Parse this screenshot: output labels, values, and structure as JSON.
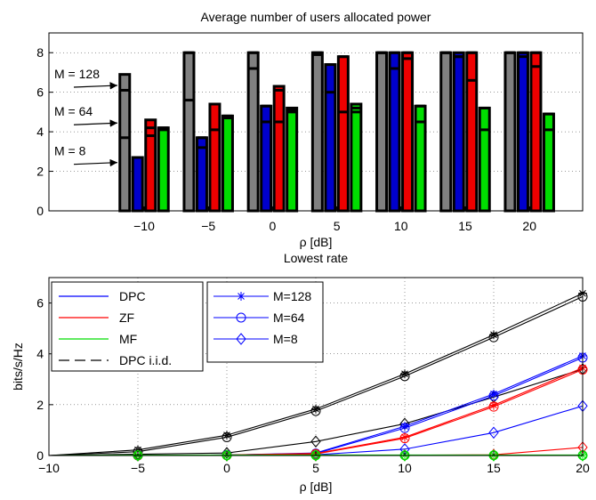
{
  "chart_data": [
    {
      "type": "bar",
      "title": "Average number of users allocated power",
      "xlabel": "ρ [dB]",
      "ylabel": "",
      "ylim": [
        0,
        9
      ],
      "yticks": [
        "0",
        "2",
        "4",
        "6",
        "8"
      ],
      "categories": [
        "−10",
        "−5",
        "0",
        "5",
        "10",
        "15",
        "20"
      ],
      "colors": {
        "DPC": "#808080",
        "DPC_alt": "#0000cc",
        "ZF": "#ee0000",
        "MF": "#00dd00"
      },
      "series": [
        {
          "key": "s0",
          "color": "#808080",
          "values": [
            [
              6.9,
              6.1,
              3.7
            ],
            [
              8.0,
              8.0,
              5.6
            ],
            [
              8.0,
              8.0,
              7.2
            ],
            [
              8.0,
              8.0,
              7.9
            ],
            [
              8.0,
              8.0,
              8.0
            ],
            [
              8.0,
              8.0,
              8.0
            ],
            [
              8.0,
              8.0,
              8.0
            ]
          ]
        },
        {
          "key": "s1",
          "color": "#0000cc",
          "values": [
            [
              2.7,
              2.7,
              2.7
            ],
            [
              3.7,
              3.7,
              3.2
            ],
            [
              5.3,
              5.3,
              4.5
            ],
            [
              7.4,
              7.4,
              6.0
            ],
            [
              8.0,
              8.0,
              7.2
            ],
            [
              8.0,
              7.8,
              7.8
            ],
            [
              8.0,
              8.0,
              7.8
            ]
          ]
        },
        {
          "key": "s2",
          "color": "#ee0000",
          "values": [
            [
              4.6,
              4.2,
              3.8
            ],
            [
              5.4,
              5.4,
              4.1
            ],
            [
              6.3,
              6.1,
              4.5
            ],
            [
              7.8,
              7.8,
              5.0
            ],
            [
              8.0,
              8.0,
              7.7
            ],
            [
              8.0,
              8.0,
              6.6
            ],
            [
              8.0,
              8.0,
              7.3
            ]
          ]
        },
        {
          "key": "s3",
          "color": "#00dd00",
          "values": [
            [
              4.2,
              4.2,
              4.1
            ],
            [
              4.8,
              4.8,
              4.7
            ],
            [
              5.2,
              5.1,
              5.0
            ],
            [
              5.4,
              5.2,
              5.0
            ],
            [
              5.3,
              5.3,
              4.5
            ],
            [
              5.2,
              5.2,
              4.1
            ],
            [
              4.9,
              4.9,
              4.1
            ]
          ]
        }
      ],
      "annotations": [
        {
          "text": "M = 128",
          "value": 6.3
        },
        {
          "text": "M = 64",
          "value": 4.4
        },
        {
          "text": "M = 8",
          "value": 2.4
        }
      ]
    },
    {
      "type": "line",
      "title": "Lowest rate",
      "xlabel": "ρ [dB]",
      "ylabel": "bits/s/Hz",
      "xlim": [
        -10,
        20
      ],
      "ylim": [
        0,
        7
      ],
      "xticks": [
        -10,
        -5,
        0,
        5,
        10,
        15,
        20
      ],
      "xtick_labels": [
        "−10",
        "−5",
        "0",
        "5",
        "10",
        "15",
        "20"
      ],
      "yticks": [
        0,
        2,
        4,
        6
      ],
      "x": [
        -10,
        -5,
        0,
        5,
        10,
        15,
        20
      ],
      "legend_methods": [
        {
          "label": "DPC",
          "color": "#0000ff",
          "dash": false
        },
        {
          "label": "ZF",
          "color": "#ff0000",
          "dash": false
        },
        {
          "label": "MF",
          "color": "#00dd00",
          "dash": false
        },
        {
          "label": "DPC i.i.d.",
          "color": "#000000",
          "dash": true
        }
      ],
      "legend_M": [
        {
          "label": "M=128",
          "marker": "star"
        },
        {
          "label": "M=64",
          "marker": "circle"
        },
        {
          "label": "M=8",
          "marker": "diamond"
        }
      ],
      "series": [
        {
          "method": "DPC i.i.d.",
          "M": "M=128",
          "color": "#000000",
          "marker": "star",
          "values": [
            0,
            0.22,
            0.8,
            1.83,
            3.21,
            4.75,
            6.38
          ]
        },
        {
          "method": "DPC i.i.d.",
          "M": "M=64",
          "color": "#000000",
          "marker": "circle",
          "values": [
            0,
            0.15,
            0.72,
            1.75,
            3.12,
            4.65,
            6.25
          ]
        },
        {
          "method": "DPC i.i.d.",
          "M": "M=8",
          "color": "#000000",
          "marker": "diamond",
          "values": [
            0,
            0.05,
            0.1,
            0.55,
            1.25,
            2.3,
            3.4
          ]
        },
        {
          "method": "DPC",
          "M": "M=128",
          "color": "#0000ff",
          "marker": "star",
          "values": [
            0,
            0,
            0.02,
            0.1,
            1.15,
            2.42,
            3.92
          ]
        },
        {
          "method": "DPC",
          "M": "M=64",
          "color": "#0000ff",
          "marker": "circle",
          "values": [
            0,
            0,
            0.02,
            0.08,
            1.08,
            2.35,
            3.85
          ]
        },
        {
          "method": "DPC",
          "M": "M=8",
          "color": "#0000ff",
          "marker": "diamond",
          "values": [
            0,
            0,
            0,
            0.03,
            0.25,
            0.9,
            1.95
          ]
        },
        {
          "method": "ZF",
          "M": "M=128",
          "color": "#ff0000",
          "marker": "star",
          "values": [
            0,
            0,
            0.02,
            0.08,
            0.72,
            1.98,
            3.45
          ]
        },
        {
          "method": "ZF",
          "M": "M=64",
          "color": "#ff0000",
          "marker": "circle",
          "values": [
            0,
            0,
            0.01,
            0.06,
            0.68,
            1.92,
            3.38
          ]
        },
        {
          "method": "ZF",
          "M": "M=8",
          "color": "#ff0000",
          "marker": "diamond",
          "values": [
            0,
            0,
            0,
            0,
            0.01,
            0.03,
            0.32
          ]
        },
        {
          "method": "MF",
          "M": "M=128",
          "color": "#00dd00",
          "marker": "star",
          "values": [
            0,
            0.01,
            0.02,
            0.02,
            0.02,
            0.02,
            0.02
          ]
        },
        {
          "method": "MF",
          "M": "M=64",
          "color": "#00dd00",
          "marker": "circle",
          "values": [
            0,
            0.01,
            0.01,
            0.01,
            0.01,
            0.01,
            0.01
          ]
        },
        {
          "method": "MF",
          "M": "M=8",
          "color": "#00dd00",
          "marker": "diamond",
          "values": [
            0,
            0,
            0,
            0,
            0,
            0,
            0
          ]
        }
      ]
    }
  ]
}
